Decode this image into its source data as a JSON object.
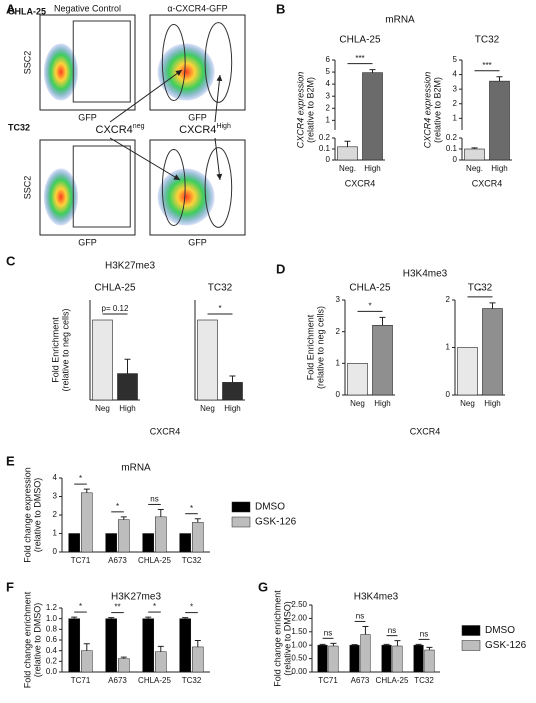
{
  "panel_a": {
    "letter": "A",
    "rows": [
      {
        "label": "CHLA-25",
        "plots": [
          {
            "title": "Negative Control",
            "xlabel": "GFP",
            "ylabel": "SSC2"
          },
          {
            "title": "α-CXCR4-GFP",
            "xlabel": "GFP"
          }
        ]
      },
      {
        "label": "TC32",
        "plots": [
          {
            "xlabel": "GFP",
            "ylabel": "SSC2"
          },
          {
            "xlabel": "GFP"
          }
        ]
      }
    ],
    "gates": [
      {
        "text": "CXCR4",
        "sup": "neg"
      },
      {
        "text": "CXCR4",
        "sup": "High"
      }
    ]
  },
  "panels": [
    {
      "letter": "B",
      "title": "mRNA"
    },
    {
      "letter": "C",
      "title": "H3K27me3",
      "xlabel": "CXCR4"
    },
    {
      "letter": "D",
      "title": "H3K4me3",
      "xlabel": "CXCR4"
    },
    {
      "letter": "E"
    },
    {
      "letter": "F"
    },
    {
      "letter": "G"
    }
  ],
  "chart_data": [
    {
      "type": "bar",
      "title": "CHLA-25",
      "categories": [
        "Neg.",
        "High"
      ],
      "values": [
        0.12,
        4.95
      ],
      "errors": [
        0.05,
        0.25
      ],
      "colors": [
        "#d9d9d9",
        "#6b6b6b"
      ],
      "ylim": [
        0,
        6
      ],
      "yticks": [
        0,
        0.1,
        0.2,
        1,
        2,
        3,
        4,
        5,
        6
      ],
      "broken_axis": true,
      "ylabel": [
        "CXCR4 expression",
        "(relative to B2M)"
      ],
      "xlabel": "CXCR4",
      "significance": "***"
    },
    {
      "type": "bar",
      "title": "TC32",
      "categories": [
        "Neg.",
        "High"
      ],
      "values": [
        0.1,
        3.55
      ],
      "errors": [
        0.01,
        0.3
      ],
      "colors": [
        "#d9d9d9",
        "#6b6b6b"
      ],
      "ylim": [
        0,
        5
      ],
      "yticks": [
        0,
        0.1,
        0.2,
        1,
        2,
        3,
        4,
        5
      ],
      "broken_axis": true,
      "ylabel": [
        "CXCR4 expression",
        "(relative to B2M)"
      ],
      "xlabel": "CXCR4",
      "significance": "***"
    },
    {
      "type": "bar",
      "title": "CHLA-25",
      "categories": [
        "Neg",
        "High"
      ],
      "values": [
        1,
        0.33
      ],
      "errors": [
        0,
        0.18
      ],
      "colors": [
        "#e8e8e8",
        "#2e2e2e"
      ],
      "ylim": [
        0,
        1.25
      ],
      "ylabel": [
        "Fold Enrichment",
        "(relative to neg cells)"
      ],
      "significance": "p= 0.12"
    },
    {
      "type": "bar",
      "title": "TC32",
      "categories": [
        "Neg",
        "High"
      ],
      "values": [
        1,
        0.22
      ],
      "errors": [
        0,
        0.08
      ],
      "colors": [
        "#e8e8e8",
        "#2e2e2e"
      ],
      "ylim": [
        0,
        1.25
      ],
      "significance": "*"
    },
    {
      "type": "bar",
      "title": "CHLA-25",
      "categories": [
        "Neg",
        "High"
      ],
      "values": [
        1,
        2.2
      ],
      "errors": [
        0,
        0.25
      ],
      "colors": [
        "#e8e8e8",
        "#8f8f8f"
      ],
      "ylim": [
        0,
        3
      ],
      "yticks": [
        0,
        1,
        2,
        3
      ],
      "ylabel": [
        "Fold Enrichment",
        "(relative to neg cells)"
      ],
      "significance": "*"
    },
    {
      "type": "bar",
      "title": "TC32",
      "categories": [
        "Neg",
        "High"
      ],
      "values": [
        1,
        1.82
      ],
      "errors": [
        0,
        0.12
      ],
      "colors": [
        "#e8e8e8",
        "#8f8f8f"
      ],
      "ylim": [
        0,
        2
      ],
      "yticks": [
        0,
        1,
        2
      ],
      "significance": "*"
    },
    {
      "type": "bar",
      "title": "mRNA",
      "categories": [
        "TC71",
        "A673",
        "CHLA-25",
        "TC32"
      ],
      "series": [
        {
          "name": "DMSO",
          "color": "#000000",
          "values": [
            1,
            1,
            1,
            1
          ]
        },
        {
          "name": "GSK-126",
          "color": "#bdbdbd",
          "values": [
            3.2,
            1.75,
            1.9,
            1.6
          ],
          "errors": [
            0.2,
            0.15,
            0.4,
            0.2
          ]
        }
      ],
      "ylim": [
        0,
        4
      ],
      "yticks": [
        0,
        1,
        2,
        3,
        4
      ],
      "ylabel": [
        "Fold change expression",
        "(relative to DMSO)"
      ],
      "significance": [
        "*",
        "*",
        "ns",
        "*"
      ],
      "legend": "right"
    },
    {
      "type": "bar",
      "title": "H3K27me3",
      "categories": [
        "TC71",
        "A673",
        "CHLA-25",
        "TC32"
      ],
      "series": [
        {
          "name": "DMSO",
          "color": "#000000",
          "values": [
            1,
            1,
            1,
            1
          ],
          "errors": [
            0.03,
            0.02,
            0.03,
            0.02
          ]
        },
        {
          "name": "GSK-126",
          "color": "#bdbdbd",
          "values": [
            0.4,
            0.25,
            0.38,
            0.47
          ],
          "errors": [
            0.13,
            0.03,
            0.1,
            0.12
          ]
        }
      ],
      "ylim": [
        0,
        1.2
      ],
      "yticks": [
        {
          "value": 0,
          "label": "0.0"
        },
        0.2,
        0.4,
        0.6,
        0.8,
        {
          "value": 1,
          "label": "1.0"
        },
        1.2
      ],
      "ylabel": [
        "Fold change enrichment",
        "(relative to DMSO)"
      ],
      "significance": [
        "*",
        "**",
        "*",
        "*"
      ]
    },
    {
      "type": "bar",
      "title": "H3K4me3",
      "categories": [
        "TC71",
        "A673",
        "CHLA-25",
        "TC32"
      ],
      "series": [
        {
          "name": "DMSO",
          "color": "#000000",
          "values": [
            1,
            1,
            1,
            1
          ],
          "errors": [
            0.03,
            0.02,
            0.03,
            0.03
          ]
        },
        {
          "name": "GSK-126",
          "color": "#bdbdbd",
          "values": [
            0.97,
            1.4,
            0.97,
            0.82
          ],
          "errors": [
            0.1,
            0.3,
            0.2,
            0.1
          ]
        }
      ],
      "ylim": [
        0,
        2.5
      ],
      "yticks": [
        {
          "value": 0,
          "label": "0.00"
        },
        {
          "value": 0.5,
          "label": "0.50"
        },
        {
          "value": 1,
          "label": "1.00"
        },
        {
          "value": 1.5,
          "label": "1.50"
        },
        {
          "value": 2,
          "label": "2.00"
        },
        {
          "value": 2.5,
          "label": "2.50"
        }
      ],
      "ylabel": [
        "Fold change enrichment",
        "(relative to DMSO)"
      ],
      "significance": [
        "ns",
        "ns",
        "ns",
        "ns"
      ],
      "legend": "right"
    }
  ]
}
